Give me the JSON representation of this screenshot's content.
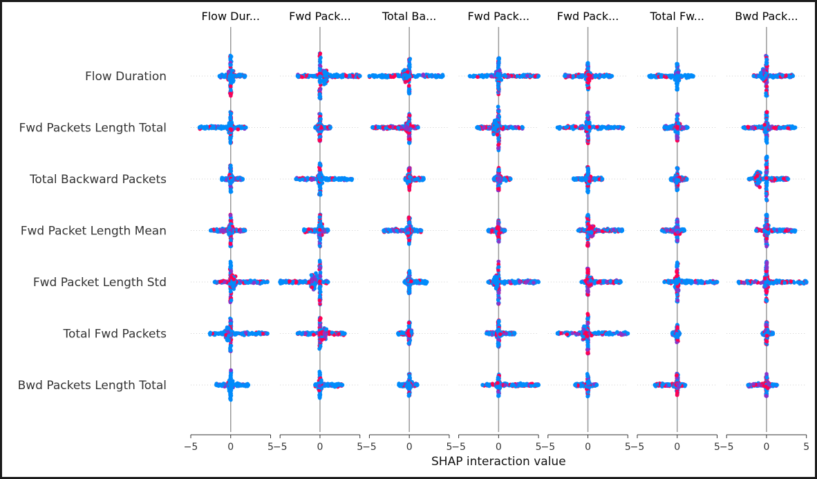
{
  "colors": {
    "low": "#008bfb",
    "high": "#ff0052",
    "mid": "#8a33c8",
    "zero_line": "#999999",
    "grid": "#cccccc"
  },
  "chart_data": {
    "type": "scatter",
    "subtype": "shap_interaction_summary",
    "title": "",
    "xlabel": "SHAP interaction value",
    "xlim": [
      -5,
      5
    ],
    "xticks": [
      -5,
      0,
      5
    ],
    "xtick_labels": [
      "−5",
      "0",
      "5"
    ],
    "grid": false,
    "column_titles": [
      "Flow Dur...",
      "Fwd Pack...",
      "Total Ba...",
      "Fwd Pack...",
      "Fwd Pack...",
      "Total Fw...",
      "Bwd Pack..."
    ],
    "row_labels": [
      "Flow Duration",
      "Fwd Packets Length Total",
      "Total Backward Packets",
      "Fwd Packet Length Mean",
      "Fwd Packet Length Std",
      "Total Fwd Packets",
      "Bwd Packets Length Total"
    ],
    "cells": [
      [
        {
          "min": -1.4,
          "max": 1.8,
          "h": 0.9,
          "hi": 0.35,
          "bias": 0
        },
        {
          "min": -2.8,
          "max": 5.0,
          "h": 1.0,
          "hi": 0.45,
          "bias": 0.6
        },
        {
          "min": -5.0,
          "max": 4.2,
          "h": 0.8,
          "hi": 0.3,
          "bias": -0.5
        },
        {
          "min": -3.6,
          "max": 5.0,
          "h": 0.8,
          "hi": 0.4,
          "bias": 0
        },
        {
          "min": -2.9,
          "max": 3.0,
          "h": 0.6,
          "hi": 0.45,
          "bias": 0
        },
        {
          "min": -3.5,
          "max": 2.0,
          "h": 0.6,
          "hi": 0.2,
          "bias": 0
        },
        {
          "min": -1.6,
          "max": 3.3,
          "h": 0.9,
          "hi": 0.45,
          "bias": -0.3
        }
      ],
      [
        {
          "min": -3.9,
          "max": 1.9,
          "h": 0.7,
          "hi": 0.25,
          "bias": 0
        },
        {
          "min": -0.6,
          "max": 1.3,
          "h": 0.6,
          "hi": 0.45,
          "bias": 0
        },
        {
          "min": -4.6,
          "max": 1.1,
          "h": 0.7,
          "hi": 0.55,
          "bias": -0.2
        },
        {
          "min": -2.7,
          "max": 3.0,
          "h": 1.0,
          "hi": 0.4,
          "bias": -0.4
        },
        {
          "min": -3.8,
          "max": 4.4,
          "h": 0.7,
          "hi": 0.4,
          "bias": 0
        },
        {
          "min": -1.6,
          "max": 1.3,
          "h": 0.6,
          "hi": 0.45,
          "bias": 0
        },
        {
          "min": -2.9,
          "max": 3.6,
          "h": 0.7,
          "hi": 0.45,
          "bias": 0
        }
      ],
      [
        {
          "min": -1.1,
          "max": 1.5,
          "h": 0.6,
          "hi": 0.25,
          "bias": 0
        },
        {
          "min": -3.0,
          "max": 4.0,
          "h": 0.7,
          "hi": 0.3,
          "bias": 0
        },
        {
          "min": -0.5,
          "max": 1.8,
          "h": 0.5,
          "hi": 0.55,
          "bias": 0
        },
        {
          "min": -0.6,
          "max": 1.5,
          "h": 0.5,
          "hi": 0.5,
          "bias": 0
        },
        {
          "min": -1.8,
          "max": 1.8,
          "h": 0.6,
          "hi": 0.25,
          "bias": 0
        },
        {
          "min": -0.8,
          "max": 1.2,
          "h": 0.5,
          "hi": 0.5,
          "bias": 0
        },
        {
          "min": -2.2,
          "max": 2.7,
          "h": 1.0,
          "hi": 0.4,
          "bias": -1.1
        }
      ],
      [
        {
          "min": -2.5,
          "max": 1.8,
          "h": 0.7,
          "hi": 0.45,
          "bias": 0
        },
        {
          "min": -2.0,
          "max": 1.0,
          "h": 0.7,
          "hi": 0.45,
          "bias": 0
        },
        {
          "min": -3.2,
          "max": 1.5,
          "h": 0.6,
          "hi": 0.5,
          "bias": 0
        },
        {
          "min": -1.3,
          "max": 0.8,
          "h": 0.5,
          "hi": 0.55,
          "bias": 0
        },
        {
          "min": -1.2,
          "max": 4.3,
          "h": 0.7,
          "hi": 0.6,
          "bias": 0.4
        },
        {
          "min": -1.9,
          "max": 0.9,
          "h": 0.5,
          "hi": 0.45,
          "bias": 0
        },
        {
          "min": -1.3,
          "max": 3.6,
          "h": 0.7,
          "hi": 0.45,
          "bias": 0
        }
      ],
      [
        {
          "min": -2.0,
          "max": 4.6,
          "h": 0.9,
          "hi": 0.45,
          "bias": 0.3
        },
        {
          "min": -5.0,
          "max": 1.0,
          "h": 1.0,
          "hi": 0.45,
          "bias": -0.8
        },
        {
          "min": -0.6,
          "max": 2.2,
          "h": 0.5,
          "hi": 0.3,
          "bias": 0
        },
        {
          "min": -1.3,
          "max": 5.0,
          "h": 1.0,
          "hi": 0.4,
          "bias": -0.3
        },
        {
          "min": -0.8,
          "max": 4.1,
          "h": 0.6,
          "hi": 0.6,
          "bias": 0.2
        },
        {
          "min": -1.6,
          "max": 5.0,
          "h": 0.9,
          "hi": 0.35,
          "bias": 0
        },
        {
          "min": -3.5,
          "max": 5.0,
          "h": 0.9,
          "hi": 0.5,
          "bias": 0
        }
      ],
      [
        {
          "min": -2.6,
          "max": 4.6,
          "h": 0.8,
          "hi": 0.35,
          "bias": -0.3
        },
        {
          "min": -2.8,
          "max": 3.1,
          "h": 0.7,
          "hi": 0.65,
          "bias": 0.5
        },
        {
          "min": -1.4,
          "max": 0.3,
          "h": 0.5,
          "hi": 0.4,
          "bias": 0
        },
        {
          "min": -1.5,
          "max": 2.0,
          "h": 0.6,
          "hi": 0.45,
          "bias": 0
        },
        {
          "min": -3.8,
          "max": 5.0,
          "h": 0.9,
          "hi": 0.45,
          "bias": -0.4
        },
        {
          "min": -0.6,
          "max": 0.3,
          "h": 0.4,
          "hi": 0.4,
          "bias": 0
        },
        {
          "min": -0.5,
          "max": 0.8,
          "h": 0.5,
          "hi": 0.45,
          "bias": 0
        }
      ],
      [
        {
          "min": -1.8,
          "max": 2.2,
          "h": 0.7,
          "hi": 0.2,
          "bias": 0
        },
        {
          "min": -0.6,
          "max": 2.8,
          "h": 0.6,
          "hi": 0.25,
          "bias": 0
        },
        {
          "min": -1.3,
          "max": 1.0,
          "h": 0.5,
          "hi": 0.3,
          "bias": 0
        },
        {
          "min": -2.0,
          "max": 5.0,
          "h": 0.5,
          "hi": 0.35,
          "bias": 0
        },
        {
          "min": -1.6,
          "max": 1.1,
          "h": 0.5,
          "hi": 0.4,
          "bias": 0
        },
        {
          "min": -2.8,
          "max": 1.0,
          "h": 0.5,
          "hi": 0.6,
          "bias": 0
        },
        {
          "min": -2.3,
          "max": 1.3,
          "h": 0.5,
          "hi": 0.55,
          "bias": 0
        }
      ]
    ]
  }
}
